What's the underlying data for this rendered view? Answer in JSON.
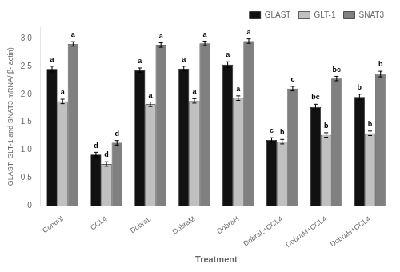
{
  "chart_data": {
    "type": "bar",
    "categories": [
      "Control",
      "CCL4",
      "DobraL",
      "DobraM",
      "DobraH",
      "DobraL+CCL4",
      "DobraM+CCL4",
      "DobraH+CCL4"
    ],
    "series": [
      {
        "name": "GLAST",
        "color": "#111111",
        "values": [
          2.45,
          0.92,
          2.43,
          2.46,
          2.53,
          1.18,
          1.77,
          1.95
        ],
        "error": [
          0.05,
          0.04,
          0.04,
          0.04,
          0.05,
          0.04,
          0.05,
          0.05
        ],
        "labels": [
          "a",
          "d",
          "a",
          "a",
          "a",
          "c",
          "bc",
          "b"
        ]
      },
      {
        "name": "GLT-1",
        "color": "#c0c0c0",
        "values": [
          1.87,
          0.75,
          1.82,
          1.88,
          1.93,
          1.15,
          1.27,
          1.3
        ],
        "error": [
          0.04,
          0.04,
          0.04,
          0.04,
          0.04,
          0.04,
          0.04,
          0.04
        ],
        "labels": [
          "a",
          "d",
          "a",
          "a",
          "a",
          "b",
          "b",
          "b"
        ]
      },
      {
        "name": "SNAT3",
        "color": "#808080",
        "values": [
          2.9,
          1.13,
          2.88,
          2.91,
          2.95,
          2.1,
          2.28,
          2.36
        ],
        "error": [
          0.04,
          0.04,
          0.04,
          0.04,
          0.04,
          0.04,
          0.04,
          0.05
        ],
        "labels": [
          "a",
          "d",
          "a",
          "a",
          "a",
          "c",
          "bc",
          "b"
        ]
      }
    ],
    "ylabel": "GLAST, GLT-1 and SNAT3 mRNA/ β- actin)",
    "xlabel": "Treatment",
    "ylim": [
      0,
      3.2
    ],
    "yticks": [
      0,
      0.5,
      {
        "value": 1,
        "label": "1.0"
      },
      1.5,
      {
        "value": 2,
        "label": "2.0"
      },
      2.5,
      {
        "value": 3,
        "label": "3.0"
      }
    ],
    "grid": true,
    "legend": "upper right"
  }
}
